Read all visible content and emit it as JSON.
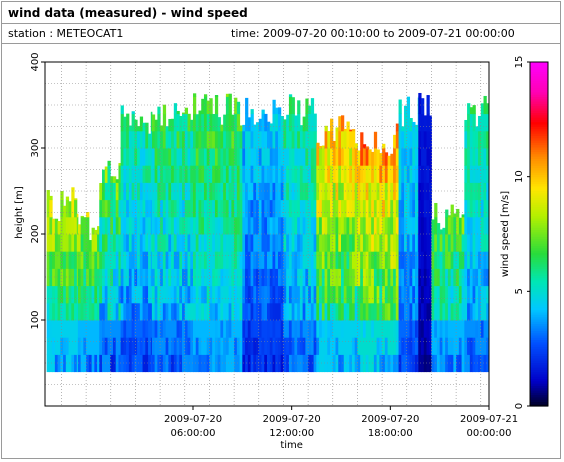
{
  "header": {
    "title": "wind data (measured) - wind speed",
    "station": "station : METEOCAT1",
    "time_range": "time: 2009-07-20 00:10:00 to 2009-07-21 00:00:00"
  },
  "chart_data": {
    "type": "heatmap",
    "title": "wind data (measured) - wind speed",
    "xlabel": "time",
    "ylabel": "height [m]",
    "colorbar_label": "wind speed [m/s]",
    "ylim": [
      0,
      400
    ],
    "xlim_hours": [
      -3,
      24
    ],
    "clim": [
      0,
      15
    ],
    "grid": true,
    "x_ticks": [
      {
        "hours": 6,
        "line1": "2009-07-20",
        "line2": "06:00:00"
      },
      {
        "hours": 12,
        "line1": "2009-07-20",
        "line2": "12:00:00"
      },
      {
        "hours": 18,
        "line1": "2009-07-20",
        "line2": "18:00:00"
      },
      {
        "hours": 24,
        "line1": "2009-07-21",
        "line2": "00:00:00"
      }
    ],
    "y_ticks": [
      100,
      200,
      300,
      400
    ],
    "colorbar_ticks": [
      0,
      5,
      10,
      15
    ],
    "height_min": 40,
    "height_step": 20,
    "time_step_hours": 0.1667,
    "segments": [
      {
        "h0": -3.0,
        "h1": -2.9,
        "top": 0,
        "low": 0,
        "high": 0
      },
      {
        "h0": -2.9,
        "h1": -1.0,
        "top": 255,
        "low": 4.0,
        "high": 9.0,
        "var": 1.2
      },
      {
        "h0": -1.0,
        "h1": 0.3,
        "top": 230,
        "low": 3.5,
        "high": 8.5,
        "var": 1.2
      },
      {
        "h0": 0.3,
        "h1": 1.6,
        "top": 295,
        "low": 3.0,
        "high": 7.5,
        "var": 1.5
      },
      {
        "h0": 1.6,
        "h1": 3.5,
        "top": 355,
        "low": 2.5,
        "high": 6.0,
        "var": 1.0
      },
      {
        "h0": 3.5,
        "h1": 6.0,
        "top": 360,
        "low": 3.0,
        "high": 6.5,
        "var": 1.2
      },
      {
        "h0": 6.0,
        "h1": 9.0,
        "top": 365,
        "low": 3.5,
        "high": 7.0,
        "var": 1.0
      },
      {
        "h0": 9.0,
        "h1": 11.5,
        "top": 365,
        "low": 2.0,
        "high": 4.5,
        "var": 0.8
      },
      {
        "h0": 11.5,
        "h1": 13.5,
        "top": 365,
        "low": 3.0,
        "high": 6.0,
        "var": 1.0
      },
      {
        "h0": 13.5,
        "h1": 16.0,
        "top": 340,
        "low": 4.0,
        "high": 10.5,
        "var": 1.5
      },
      {
        "h0": 16.0,
        "h1": 18.5,
        "top": 330,
        "low": 4.5,
        "high": 11.0,
        "var": 1.6
      },
      {
        "h0": 18.5,
        "h1": 19.7,
        "top": 365,
        "low": 2.5,
        "high": 5.0,
        "var": 0.8
      },
      {
        "h0": 19.7,
        "h1": 20.5,
        "top": 365,
        "low": 0.8,
        "high": 1.5,
        "var": 0.3
      },
      {
        "h0": 20.5,
        "h1": 22.5,
        "top": 240,
        "low": 3.5,
        "high": 7.5,
        "var": 1.2
      },
      {
        "h0": 22.5,
        "h1": 24.0,
        "top": 365,
        "low": 3.0,
        "high": 6.0,
        "var": 1.0
      }
    ]
  }
}
